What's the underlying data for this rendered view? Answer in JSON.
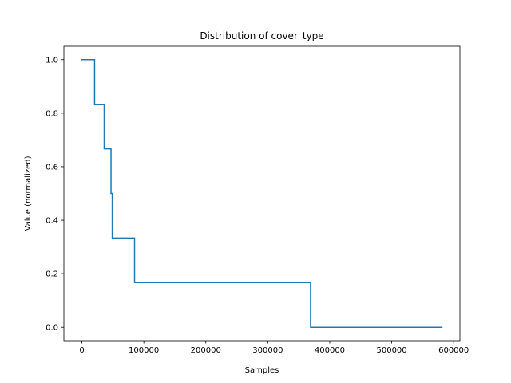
{
  "chart_data": {
    "type": "line",
    "title": "Distribution of cover_type",
    "xlabel": "Samples",
    "ylabel": "Value (normalized)",
    "xlim": [
      -29050,
      610050
    ],
    "ylim": [
      -0.05,
      1.05
    ],
    "xticks": [
      0,
      100000,
      200000,
      300000,
      400000,
      500000,
      600000
    ],
    "xtick_labels": [
      "0",
      "100000",
      "200000",
      "300000",
      "400000",
      "500000",
      "600000"
    ],
    "yticks": [
      0.0,
      0.2,
      0.4,
      0.6,
      0.8,
      1.0
    ],
    "ytick_labels": [
      "0.0",
      "0.2",
      "0.4",
      "0.6",
      "0.8",
      "1.0"
    ],
    "grid": false,
    "series": [
      {
        "color": "#1f77b4",
        "step": true,
        "x": [
          0,
          20510,
          36000,
          47000,
          49000,
          85000,
          369000,
          581000
        ],
        "y": [
          1.0,
          0.8333,
          0.6667,
          0.5,
          0.3333,
          0.1667,
          0.0,
          0.0
        ]
      }
    ]
  }
}
